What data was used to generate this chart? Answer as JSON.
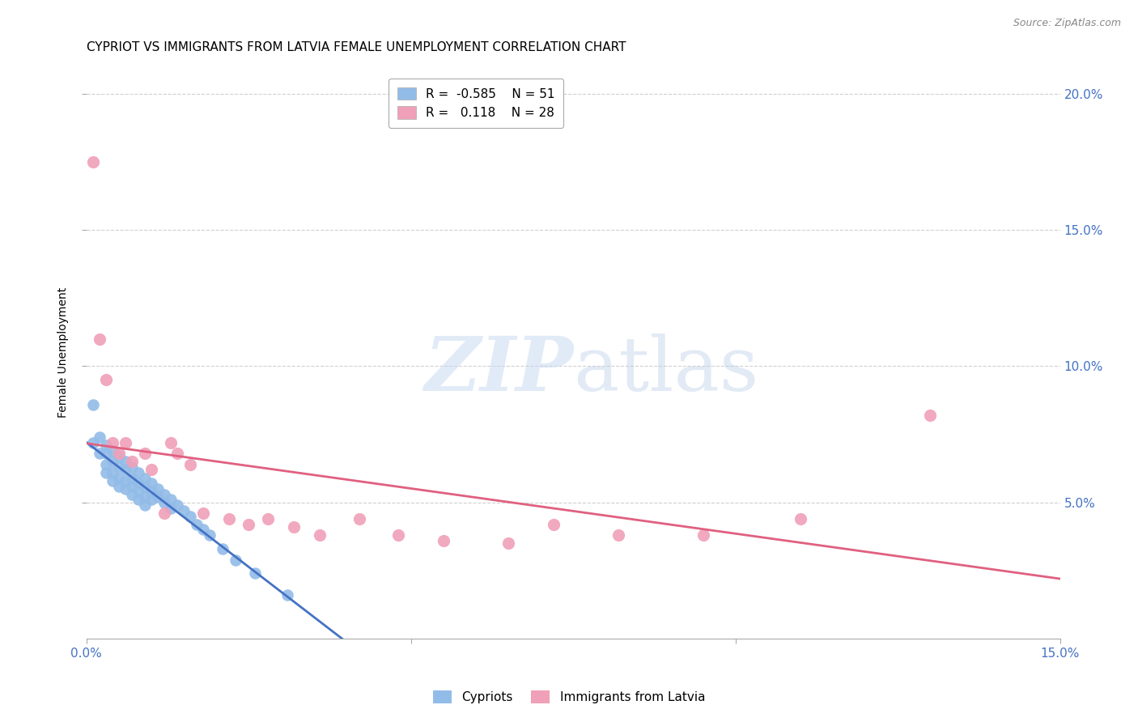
{
  "title": "CYPRIOT VS IMMIGRANTS FROM LATVIA FEMALE UNEMPLOYMENT CORRELATION CHART",
  "source": "Source: ZipAtlas.com",
  "ylabel": "Female Unemployment",
  "xlim": [
    0,
    0.15
  ],
  "ylim": [
    0,
    0.21
  ],
  "xticks": [
    0.0,
    0.05,
    0.1,
    0.15
  ],
  "xtick_labels": [
    "0.0%",
    "",
    "",
    "15.0%"
  ],
  "yticks": [
    0.05,
    0.1,
    0.15,
    0.2
  ],
  "ytick_labels": [
    "5.0%",
    "10.0%",
    "15.0%",
    "20.0%"
  ],
  "cypriot_R": -0.585,
  "cypriot_N": 51,
  "latvia_R": 0.118,
  "latvia_N": 28,
  "cypriot_color": "#92bce8",
  "latvia_color": "#f0a0b8",
  "cypriot_line_color": "#4472c4",
  "latvia_line_color": "#e06080",
  "cypriot_x": [
    0.001,
    0.001,
    0.002,
    0.002,
    0.003,
    0.003,
    0.003,
    0.003,
    0.004,
    0.004,
    0.004,
    0.004,
    0.005,
    0.005,
    0.005,
    0.005,
    0.006,
    0.006,
    0.006,
    0.006,
    0.007,
    0.007,
    0.007,
    0.007,
    0.008,
    0.008,
    0.008,
    0.008,
    0.009,
    0.009,
    0.009,
    0.009,
    0.01,
    0.01,
    0.01,
    0.011,
    0.011,
    0.012,
    0.012,
    0.013,
    0.013,
    0.014,
    0.015,
    0.016,
    0.017,
    0.018,
    0.019,
    0.021,
    0.023,
    0.026,
    0.031
  ],
  "cypriot_y": [
    0.086,
    0.072,
    0.074,
    0.068,
    0.071,
    0.068,
    0.064,
    0.061,
    0.069,
    0.065,
    0.061,
    0.058,
    0.067,
    0.063,
    0.059,
    0.056,
    0.065,
    0.062,
    0.058,
    0.055,
    0.063,
    0.059,
    0.056,
    0.053,
    0.061,
    0.057,
    0.054,
    0.051,
    0.059,
    0.056,
    0.052,
    0.049,
    0.057,
    0.054,
    0.051,
    0.055,
    0.052,
    0.053,
    0.05,
    0.051,
    0.048,
    0.049,
    0.047,
    0.045,
    0.042,
    0.04,
    0.038,
    0.033,
    0.029,
    0.024,
    0.016
  ],
  "latvia_x": [
    0.001,
    0.002,
    0.003,
    0.004,
    0.005,
    0.006,
    0.007,
    0.009,
    0.01,
    0.012,
    0.013,
    0.014,
    0.016,
    0.018,
    0.022,
    0.025,
    0.028,
    0.032,
    0.036,
    0.042,
    0.048,
    0.055,
    0.065,
    0.072,
    0.082,
    0.095,
    0.11,
    0.13
  ],
  "latvia_y": [
    0.175,
    0.11,
    0.095,
    0.072,
    0.068,
    0.072,
    0.065,
    0.068,
    0.062,
    0.046,
    0.072,
    0.068,
    0.064,
    0.046,
    0.044,
    0.042,
    0.044,
    0.041,
    0.038,
    0.044,
    0.038,
    0.036,
    0.035,
    0.042,
    0.038,
    0.038,
    0.044,
    0.082
  ],
  "watermark_zip": "ZIP",
  "watermark_atlas": "atlas",
  "background_color": "#ffffff",
  "grid_color": "#d0d0d0",
  "tick_color": "#4472c4",
  "title_fontsize": 11,
  "axis_label_fontsize": 10,
  "tick_fontsize": 11
}
